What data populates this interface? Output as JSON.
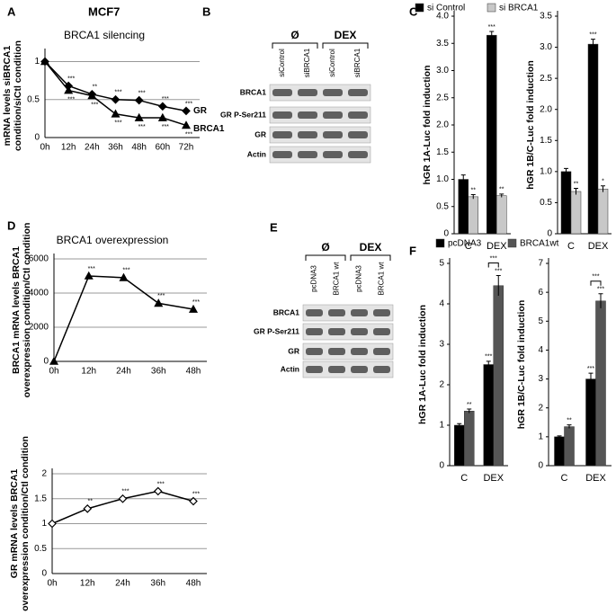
{
  "chart_data": [
    {
      "type": "line",
      "panel": "A",
      "subtitle": "MCF7",
      "title": "BRCA1 silencing",
      "ylabel": [
        "mRNA levels siBRCA1",
        "condition/siCtl condition"
      ],
      "categories": [
        "0h",
        "12h",
        "24h",
        "36h",
        "48h",
        "60h",
        "72h"
      ],
      "ylim": [
        0,
        1.1
      ],
      "yticks": [
        0,
        0.5,
        1
      ],
      "grid": true,
      "series": [
        {
          "name": "GR",
          "color": "#000000",
          "marker": "diamond",
          "values": [
            1,
            0.68,
            0.57,
            0.5,
            0.49,
            0.41,
            0.35
          ],
          "significance": [
            null,
            "***",
            "**",
            "***",
            "***",
            "***",
            "***"
          ]
        },
        {
          "name": "BRCA1",
          "color": "#000000",
          "marker": "triangle",
          "values": [
            1,
            0.62,
            0.55,
            0.31,
            0.26,
            0.26,
            0.16
          ],
          "significance": [
            null,
            "***",
            "***",
            "***",
            "***",
            "***",
            "***"
          ]
        }
      ]
    },
    {
      "type": "bar",
      "panel": "C",
      "ylabel": "hGR 1A-Luc fold induction",
      "categories": [
        "C",
        "DEX"
      ],
      "ylim": [
        0,
        4
      ],
      "yticks": [
        0,
        0.5,
        {
          "value": 1,
          "label": "1.0"
        },
        1.5,
        {
          "value": 2,
          "label": "2.0"
        },
        2.5,
        {
          "value": 3,
          "label": "3.0"
        },
        3.5,
        {
          "value": 4,
          "label": "4.0"
        }
      ],
      "series": [
        {
          "name": "si Control",
          "color": "#000000",
          "values": [
            1.0,
            3.65
          ],
          "errors": [
            0.08,
            0.07
          ],
          "significance": [
            null,
            "***"
          ]
        },
        {
          "name": "si BRCA1",
          "color": "#c8c8c8",
          "values": [
            0.68,
            0.7
          ],
          "errors": [
            0.04,
            0.03
          ],
          "significance": [
            "**",
            "**"
          ]
        }
      ]
    },
    {
      "type": "bar",
      "ylabel": "hGR 1B/C-Luc fold induction",
      "categories": [
        "C",
        "DEX"
      ],
      "ylim": [
        0,
        3.5
      ],
      "yticks": [
        0,
        0.5,
        {
          "value": 1,
          "label": "1.0"
        },
        1.5,
        {
          "value": 2,
          "label": "2.0"
        },
        2.5,
        {
          "value": 3,
          "label": "3.0"
        },
        3.5
      ],
      "series": [
        {
          "color": "#000000",
          "values": [
            1.0,
            3.05
          ],
          "errors": [
            0.05,
            0.08
          ],
          "significance": [
            null,
            "***"
          ]
        },
        {
          "color": "#c8c8c8",
          "values": [
            0.68,
            0.72
          ],
          "errors": [
            0.05,
            0.05
          ],
          "significance": [
            "**",
            "*"
          ]
        }
      ]
    },
    {
      "type": "line",
      "panel": "D",
      "title": "BRCA1 overexpression",
      "ylabel": [
        "BRCA1 mRNA levels BRCA1",
        "overexpression condition/Ctl condition"
      ],
      "categories": [
        "0h",
        "12h",
        "24h",
        "36h",
        "48h"
      ],
      "ylim": [
        0,
        6000
      ],
      "yticks": [
        0,
        2000,
        4000,
        6000
      ],
      "grid": true,
      "series": [
        {
          "color": "#000000",
          "marker": "triangle",
          "values": [
            1,
            5000,
            4900,
            3400,
            3050
          ],
          "significance": [
            null,
            "***",
            "***",
            "***",
            "***"
          ]
        }
      ]
    },
    {
      "type": "bar",
      "panel": "F",
      "ylabel": "hGR 1A-Luc fold induction",
      "categories": [
        "C",
        "DEX"
      ],
      "ylim": [
        0,
        5
      ],
      "yticks": [
        0,
        1,
        2,
        3,
        4,
        5
      ],
      "bracket_labels": [
        null,
        "***"
      ],
      "series": [
        {
          "name": "pcDNA3",
          "color": "#000000",
          "values": [
            1.0,
            2.5
          ],
          "errors": [
            0.04,
            0.08
          ],
          "significance": [
            null,
            "***"
          ]
        },
        {
          "name": "BRCA1wt",
          "color": "#555555",
          "values": [
            1.35,
            4.45
          ],
          "errors": [
            0.05,
            0.25
          ],
          "significance": [
            "**",
            "***"
          ]
        }
      ]
    },
    {
      "type": "bar",
      "ylabel": "hGR 1B/C-Luc fold induction",
      "categories": [
        "C",
        "DEX"
      ],
      "ylim": [
        0,
        7
      ],
      "yticks": [
        0,
        1,
        2,
        3,
        4,
        5,
        6,
        7
      ],
      "bracket_labels": [
        null,
        "***"
      ],
      "series": [
        {
          "color": "#000000",
          "values": [
            1.0,
            3.0
          ],
          "errors": [
            0.03,
            0.2
          ],
          "significance": [
            null,
            "***"
          ]
        },
        {
          "color": "#555555",
          "values": [
            1.35,
            5.7
          ],
          "errors": [
            0.06,
            0.25
          ],
          "significance": [
            "**",
            "***"
          ]
        }
      ]
    },
    {
      "type": "line",
      "ylabel": [
        "GR mRNA levels BRCA1",
        "overexpression condition/Ctl condition"
      ],
      "categories": [
        "0h",
        "12h",
        "24h",
        "36h",
        "48h"
      ],
      "ylim": [
        0,
        2
      ],
      "yticks": [
        0,
        0.5,
        1,
        1.5,
        2
      ],
      "grid": true,
      "series": [
        {
          "color": "#000000",
          "marker": "diamond-open",
          "values": [
            1,
            1.3,
            1.5,
            1.65,
            1.45
          ],
          "significance": [
            null,
            "**",
            "***",
            "***",
            "***"
          ]
        }
      ]
    }
  ],
  "blots": [
    {
      "panel": "B",
      "groups": [
        "Ø",
        "DEX"
      ],
      "lanes": [
        "siControl",
        "siBRCA1",
        "siControl",
        "siBRCA1"
      ],
      "rows": [
        "BRCA1",
        "GR P-Ser211",
        "GR",
        "Actin"
      ]
    },
    {
      "panel": "E",
      "groups": [
        "Ø",
        "DEX"
      ],
      "lanes": [
        "pcDNA3",
        "BRCA1 wt",
        "pcDNA3",
        "BRCA1 wt"
      ],
      "rows": [
        "BRCA1",
        "GR P-Ser211",
        "GR",
        "Actin"
      ]
    }
  ]
}
